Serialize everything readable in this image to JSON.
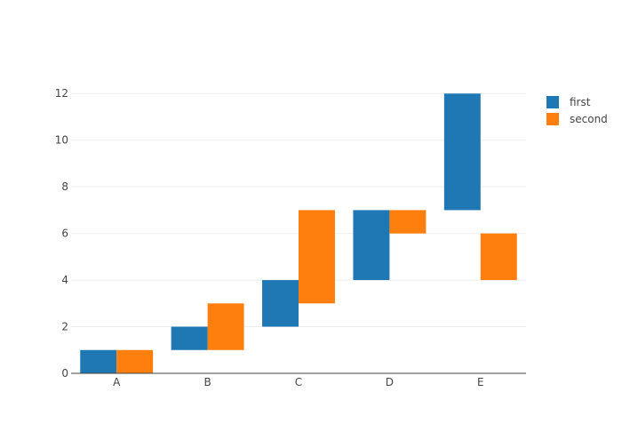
{
  "chart_data": {
    "type": "bar",
    "subtype": "floating",
    "categories": [
      "A",
      "B",
      "C",
      "D",
      "E"
    ],
    "series": [
      {
        "name": "first",
        "color": "#1f77b4",
        "ranges": [
          [
            0,
            1
          ],
          [
            1,
            2
          ],
          [
            2,
            4
          ],
          [
            4,
            7
          ],
          [
            7,
            12
          ]
        ]
      },
      {
        "name": "second",
        "color": "#ff7f0e",
        "ranges": [
          [
            0,
            1
          ],
          [
            1,
            3
          ],
          [
            3,
            7
          ],
          [
            6,
            7
          ],
          [
            4,
            6
          ]
        ]
      }
    ],
    "ylim": [
      0,
      12.2
    ],
    "yticks": [
      "0",
      "2",
      "4",
      "6",
      "8",
      "10",
      "12"
    ],
    "grid": true,
    "legend_position": "top-right",
    "grid_color": "#eeeeee",
    "axis_color": "#444444"
  }
}
